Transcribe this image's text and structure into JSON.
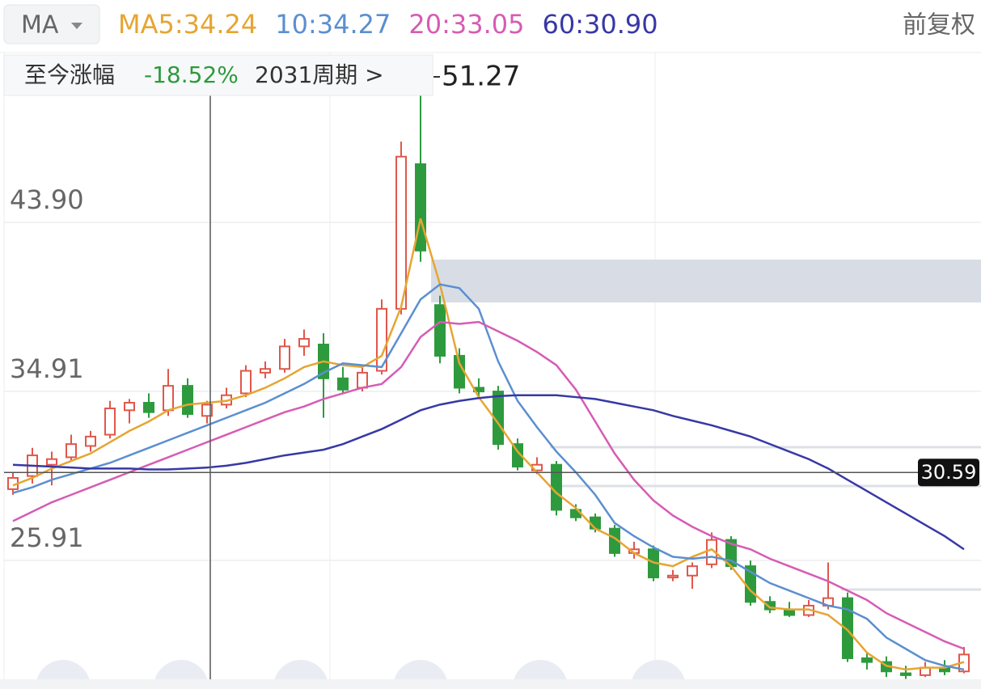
{
  "chart_data": {
    "type": "candlestick",
    "indicator_button": "MA",
    "adjust": "前复权",
    "summary": {
      "label": "至今涨幅",
      "change": "-18.52%",
      "periods": "2031周期 >"
    },
    "up_color": "#e0574a",
    "down_color": "#2e9a3e",
    "ylim": [
      19.58,
      52.94
    ],
    "yticks": [
      {
        "value": 43.9,
        "label": "43.90"
      },
      34.91,
      25.91
    ],
    "grid": true,
    "crosshair_price": 30.59,
    "candles": [
      [
        29.7,
        30.6,
        29.4,
        30.3
      ],
      [
        30.4,
        31.9,
        30.0,
        31.5
      ],
      [
        31.0,
        31.7,
        29.9,
        31.3
      ],
      [
        31.4,
        32.6,
        31.2,
        32.1
      ],
      [
        32.0,
        32.8,
        31.7,
        32.5
      ],
      [
        32.6,
        34.4,
        32.4,
        34.0
      ],
      [
        33.9,
        34.5,
        33.2,
        34.3
      ],
      [
        34.3,
        34.8,
        33.5,
        33.8
      ],
      [
        33.9,
        36.1,
        33.6,
        35.2
      ],
      [
        35.2,
        35.6,
        33.5,
        33.7
      ],
      [
        33.6,
        34.4,
        33.2,
        34.2
      ],
      [
        34.2,
        35.1,
        34.0,
        34.7
      ],
      [
        34.8,
        36.3,
        34.6,
        36.0
      ],
      [
        35.9,
        36.5,
        35.6,
        36.1
      ],
      [
        36.1,
        37.7,
        35.9,
        37.3
      ],
      [
        37.3,
        38.2,
        36.8,
        37.7
      ],
      [
        37.4,
        38.0,
        33.5,
        35.6
      ],
      [
        35.6,
        36.2,
        34.8,
        35.0
      ],
      [
        35.1,
        36.3,
        34.9,
        35.9
      ],
      [
        36.0,
        39.8,
        35.8,
        39.3
      ],
      [
        39.3,
        48.2,
        39.0,
        47.4
      ],
      [
        47.0,
        51.27,
        41.8,
        42.4
      ],
      [
        39.5,
        40.0,
        36.4,
        36.8
      ],
      [
        36.8,
        37.2,
        34.8,
        35.1
      ],
      [
        35.1,
        35.6,
        34.6,
        34.9
      ],
      [
        34.9,
        35.2,
        31.8,
        32.1
      ],
      [
        32.1,
        32.4,
        30.7,
        30.9
      ],
      [
        30.7,
        31.4,
        30.5,
        31.0
      ],
      [
        31.0,
        31.2,
        28.3,
        28.6
      ],
      [
        28.6,
        28.9,
        28.0,
        28.2
      ],
      [
        28.2,
        28.4,
        27.4,
        27.6
      ],
      [
        27.6,
        27.8,
        26.1,
        26.3
      ],
      [
        26.3,
        26.9,
        26.0,
        26.5
      ],
      [
        26.5,
        26.7,
        24.8,
        25.0
      ],
      [
        25.0,
        25.4,
        24.8,
        25.1
      ],
      [
        25.1,
        25.8,
        24.4,
        25.6
      ],
      [
        25.7,
        27.4,
        25.5,
        27.0
      ],
      [
        27.0,
        27.2,
        25.4,
        25.6
      ],
      [
        25.6,
        25.9,
        23.5,
        23.7
      ],
      [
        23.7,
        24.0,
        23.1,
        23.3
      ],
      [
        23.3,
        23.7,
        22.9,
        23.0
      ],
      [
        23.0,
        23.8,
        22.9,
        23.5
      ],
      [
        23.5,
        25.8,
        23.3,
        23.9
      ],
      [
        23.9,
        24.2,
        20.5,
        20.7
      ],
      [
        20.7,
        21.0,
        20.1,
        20.5
      ],
      [
        20.5,
        20.8,
        19.7,
        20.0
      ],
      [
        19.9,
        20.3,
        19.6,
        19.8
      ],
      [
        19.8,
        20.5,
        19.7,
        20.2
      ],
      [
        20.2,
        20.6,
        19.8,
        20.0
      ],
      [
        20.0,
        21.3,
        19.9,
        20.9
      ]
    ],
    "series": [
      {
        "name": "MA5:34.24",
        "color": "#e6a532",
        "values": [
          29.9,
          30.3,
          30.8,
          31.2,
          31.6,
          32.2,
          32.8,
          33.3,
          33.9,
          34.2,
          34.3,
          34.4,
          34.7,
          35.1,
          35.6,
          36.2,
          36.5,
          36.3,
          36.2,
          36.8,
          39.4,
          44.1,
          40.6,
          36.4,
          34.6,
          33.2,
          31.7,
          30.6,
          29.5,
          28.7,
          27.6,
          27.1,
          26.3,
          25.8,
          25.6,
          26.1,
          26.5,
          25.6,
          24.3,
          23.4,
          23.3,
          23.3,
          23.0,
          22.2,
          21.0,
          20.3,
          20.1,
          20.2,
          20.2,
          20.5
        ]
      },
      {
        "name": "10:34.27",
        "color": "#5b8fd0",
        "values": [
          29.5,
          29.8,
          30.2,
          30.5,
          30.8,
          31.1,
          31.5,
          31.9,
          32.3,
          32.7,
          33.1,
          33.5,
          33.9,
          34.3,
          34.8,
          35.3,
          35.9,
          36.4,
          36.3,
          36.2,
          38.0,
          39.8,
          40.6,
          40.4,
          39.3,
          36.5,
          34.4,
          33.0,
          31.7,
          30.6,
          29.4,
          27.9,
          27.2,
          26.6,
          26.1,
          26.0,
          26.1,
          25.9,
          25.3,
          24.7,
          24.3,
          23.9,
          23.5,
          23.3,
          22.8,
          21.8,
          21.2,
          20.6,
          20.3,
          20.1
        ]
      },
      {
        "name": "20:33.05",
        "color": "#d65cb4",
        "values": [
          28.0,
          28.5,
          29.0,
          29.4,
          29.8,
          30.2,
          30.6,
          31.0,
          31.4,
          31.8,
          32.2,
          32.6,
          33.0,
          33.4,
          33.8,
          34.1,
          34.5,
          34.8,
          35.1,
          35.3,
          36.2,
          37.8,
          38.6,
          38.5,
          38.6,
          38.1,
          37.6,
          37.0,
          36.3,
          35.0,
          33.3,
          31.6,
          30.2,
          29.1,
          28.3,
          27.7,
          27.2,
          26.8,
          26.5,
          26.0,
          25.6,
          25.2,
          24.8,
          24.3,
          23.8,
          23.1,
          22.6,
          22.1,
          21.6,
          21.2
        ]
      },
      {
        "name": "60:30.90",
        "color": "#3838a6",
        "values": [
          31.0,
          30.95,
          30.9,
          30.85,
          30.8,
          30.8,
          30.8,
          30.75,
          30.75,
          30.8,
          30.85,
          30.95,
          31.1,
          31.3,
          31.5,
          31.65,
          31.8,
          32.1,
          32.5,
          32.9,
          33.4,
          33.9,
          34.2,
          34.4,
          34.55,
          34.65,
          34.7,
          34.7,
          34.7,
          34.6,
          34.5,
          34.3,
          34.1,
          33.9,
          33.6,
          33.35,
          33.1,
          32.8,
          32.5,
          32.1,
          31.7,
          31.3,
          30.8,
          30.2,
          29.6,
          29.0,
          28.4,
          27.8,
          27.2,
          26.5
        ]
      }
    ]
  }
}
